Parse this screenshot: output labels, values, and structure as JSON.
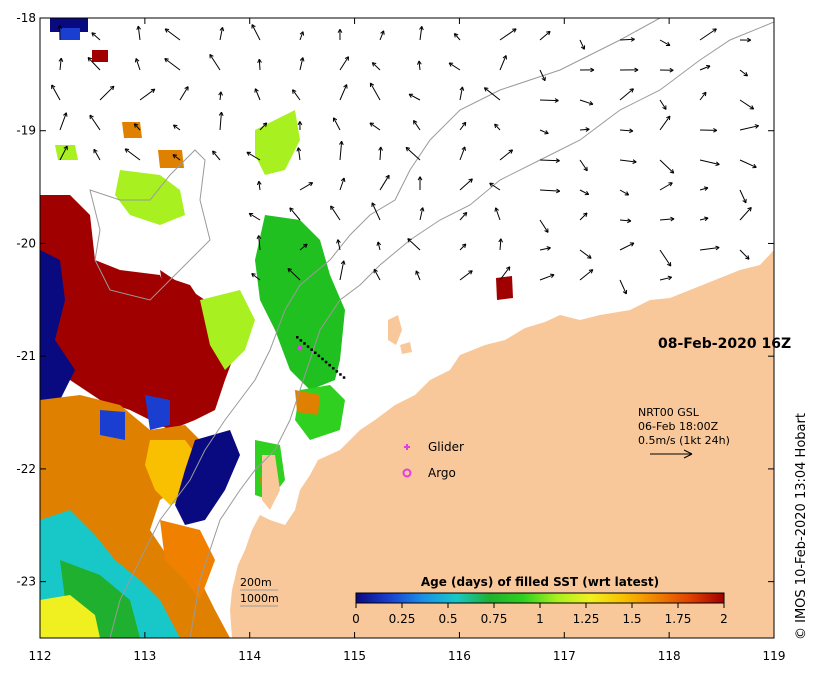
{
  "map": {
    "date_label": "08-Feb-2020 16Z",
    "credit": "© IMOS 10-Feb-2020 13:04 Hobart",
    "x_ticks": [
      "112",
      "113",
      "114",
      "115",
      "116",
      "117",
      "118",
      "119"
    ],
    "y_ticks": [
      "-18",
      "-19",
      "-20",
      "-21",
      "-22",
      "-23"
    ],
    "x_range": [
      112,
      119
    ],
    "y_range": [
      -23.5,
      -18
    ],
    "colors": {
      "land": "#f9c89a",
      "ocean": "#ffffff",
      "contour": "#9a9a9a",
      "marker": "#e23de2"
    }
  },
  "current_legend": {
    "source": "NRT00 GSL",
    "time": "06-Feb 18:00Z",
    "scale": "0.5m/s (1kt 24h)"
  },
  "markers": {
    "glider_label": "Glider",
    "argo_label": "Argo"
  },
  "contours": {
    "depth_200": "200m",
    "depth_1000": "1000m"
  },
  "colorbar": {
    "title": "Age (days) of filled SST (wrt latest)",
    "ticks": [
      "0",
      "0.25",
      "0.5",
      "0.75",
      "1",
      "1.25",
      "1.5",
      "1.75",
      "2"
    ],
    "colors": [
      "#0a0a80",
      "#1a3fd0",
      "#1a90e8",
      "#18c8c8",
      "#20b030",
      "#30d020",
      "#a8f020",
      "#f0f020",
      "#f8c000",
      "#f08000",
      "#e04000",
      "#a00000"
    ]
  }
}
